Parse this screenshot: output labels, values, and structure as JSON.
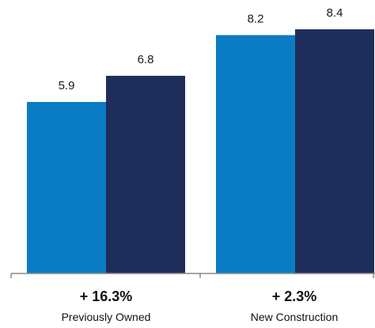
{
  "chart_data": {
    "type": "bar",
    "categories": [
      "Previously Owned",
      "New Construction"
    ],
    "category_changes": [
      "+ 16.3%",
      "+ 2.3%"
    ],
    "series": [
      {
        "values": [
          5.9,
          8.2
        ],
        "color": "#0a7cc4"
      },
      {
        "values": [
          6.8,
          8.4
        ],
        "color": "#1f2d5a"
      }
    ],
    "value_labels": [
      [
        "5.9",
        "8.2"
      ],
      [
        "6.8",
        "8.4"
      ]
    ],
    "ylim": [
      0,
      9
    ],
    "grid": false,
    "axis_color": "#888888"
  }
}
